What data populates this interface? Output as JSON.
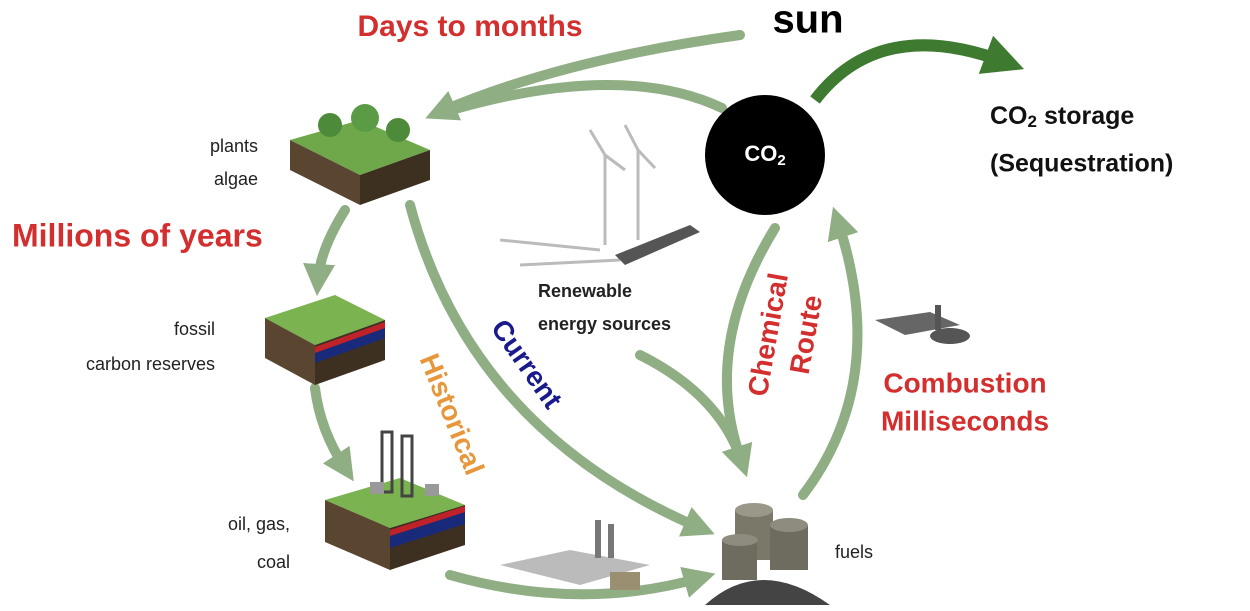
{
  "timescales": [
    "Days to months",
    "Millions of years"
  ],
  "sun": "sun",
  "co2": {
    "text": "CO",
    "subscript": "2"
  },
  "storage": {
    "formula": "CO",
    "subscript": "2",
    "word": "storage",
    "note": "(Sequestration)"
  },
  "nodes": [
    {
      "lines": [
        "plants",
        "algae"
      ]
    },
    {
      "lines": [
        "fossil",
        "carbon reserves"
      ]
    },
    {
      "lines": [
        "oil, gas,",
        "coal"
      ]
    },
    {
      "lines": [
        "fuels"
      ]
    },
    {
      "lines": [
        "Renewable",
        "energy sources"
      ]
    }
  ],
  "routes": {
    "historical": "Historical",
    "current": "Current",
    "chemical": [
      "Chemical",
      "Route"
    ]
  },
  "combustion": [
    "Combustion",
    "Milliseconds"
  ]
}
